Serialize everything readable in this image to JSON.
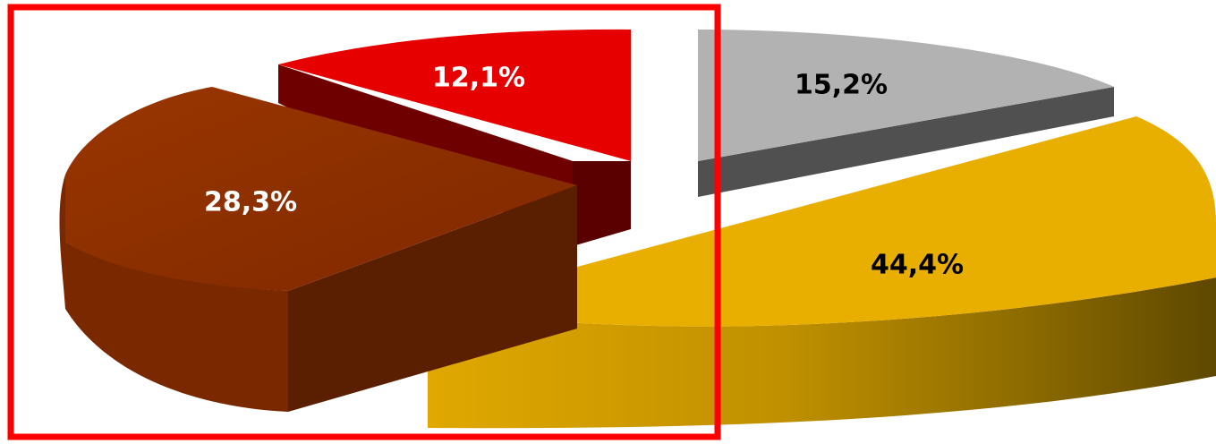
{
  "chart_data": {
    "type": "pie",
    "title": "",
    "legend": "none",
    "slices": [
      {
        "value": 12.1,
        "label": "12,1%",
        "color": "#E60000",
        "side_color": "#6E0000",
        "label_color": "#FFFFFF"
      },
      {
        "value": 28.3,
        "label": "28,3%",
        "color": "#8B2E00",
        "side_color": "#5A1E00",
        "label_color": "#FFFFFF"
      },
      {
        "value": 44.4,
        "label": "44,4%",
        "color": "#E9AF00",
        "side_color": "#8A6A00",
        "label_color": "#000000"
      },
      {
        "value": 15.2,
        "label": "15,2%",
        "color": "#B2B2B2",
        "side_color": "#505050",
        "label_color": "#000000"
      }
    ],
    "highlight": {
      "color": "#FF0000",
      "covers": [
        "12,1%",
        "28,3%"
      ]
    }
  }
}
